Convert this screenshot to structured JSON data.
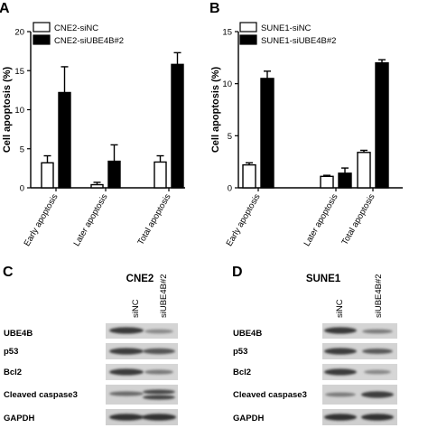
{
  "chart_data": [
    {
      "panel": "A",
      "type": "bar",
      "ylabel": "Cell apoptosis (%)",
      "ylim": [
        0,
        20
      ],
      "yticks": [
        0,
        5,
        10,
        15,
        20
      ],
      "categories": [
        "Early apoptosis",
        "Later apoptosis",
        "Total apoptosis"
      ],
      "series": [
        {
          "name": "CNE2-siNC",
          "fill": "#ffffff",
          "values": [
            3.2,
            0.4,
            3.3
          ],
          "errors": [
            0.9,
            0.3,
            0.8
          ]
        },
        {
          "name": "CNE2-siUBE4B#2",
          "fill": "#000000",
          "values": [
            12.2,
            3.4,
            15.8
          ],
          "errors": [
            3.3,
            2.1,
            1.5
          ]
        }
      ],
      "legend_position": "top-left"
    },
    {
      "panel": "B",
      "type": "bar",
      "ylabel": "Cell apoptosis (%)",
      "ylim": [
        0,
        15
      ],
      "yticks": [
        0,
        5,
        10,
        15
      ],
      "categories": [
        "Early apoptosis",
        "Later apoptosis",
        "Total apoptosis"
      ],
      "series": [
        {
          "name": "SUNE1-siNC",
          "fill": "#ffffff",
          "values": [
            2.2,
            1.1,
            3.4
          ],
          "errors": [
            0.2,
            0.1,
            0.2
          ]
        },
        {
          "name": "SUNE1-siUBE4B#2",
          "fill": "#000000",
          "values": [
            10.5,
            1.4,
            12.0
          ],
          "errors": [
            0.7,
            0.5,
            0.3
          ]
        }
      ],
      "legend_position": "top-left"
    }
  ],
  "blots": [
    {
      "panel": "C",
      "title": "CNE2",
      "lanes": [
        "siNC",
        "siUBE4B#2"
      ],
      "rows": [
        "UBE4B",
        "p53",
        "Bcl2",
        "Cleaved caspase3",
        "GAPDH"
      ]
    },
    {
      "panel": "D",
      "title": "SUNE1",
      "lanes": [
        "siNC",
        "siUBE4B#2"
      ],
      "rows": [
        "UBE4B",
        "p53",
        "Bcl2",
        "Cleaved caspase3",
        "GAPDH"
      ]
    }
  ]
}
